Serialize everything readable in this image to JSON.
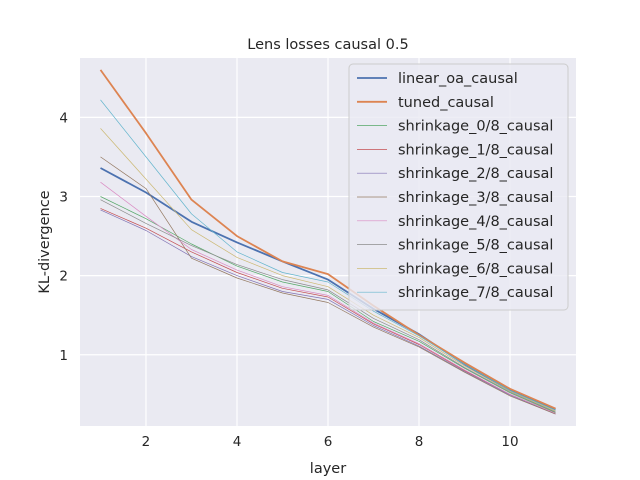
{
  "chart_data": {
    "type": "line",
    "title": "Lens losses causal 0.5",
    "xlabel": "layer",
    "ylabel": "KL-divergence",
    "xlim": [
      0.55,
      11.45
    ],
    "ylim": [
      0.1,
      4.75
    ],
    "xticks": [
      2,
      4,
      6,
      8,
      10
    ],
    "yticks": [
      1,
      2,
      3,
      4
    ],
    "grid": true,
    "legend_position": "top-right",
    "x": [
      1,
      2,
      3,
      4,
      5,
      6,
      7,
      8,
      9,
      10,
      11
    ],
    "series": [
      {
        "name": "linear_oa_causal",
        "color": "#4c72b0",
        "width": 1.8,
        "values": [
          3.36,
          3.05,
          2.68,
          2.42,
          2.18,
          1.95,
          1.58,
          1.26,
          0.88,
          0.55,
          0.31
        ]
      },
      {
        "name": "tuned_causal",
        "color": "#dd8452",
        "width": 1.8,
        "values": [
          4.6,
          3.8,
          2.96,
          2.5,
          2.18,
          2.02,
          1.62,
          1.25,
          0.9,
          0.57,
          0.32
        ]
      },
      {
        "name": "shrinkage_0/8_causal",
        "color": "#55a868",
        "width": 0.7,
        "values": [
          3.0,
          2.72,
          2.4,
          2.12,
          1.92,
          1.8,
          1.42,
          1.17,
          0.83,
          0.52,
          0.27
        ]
      },
      {
        "name": "shrinkage_1/8_causal",
        "color": "#c44e52",
        "width": 0.7,
        "values": [
          2.85,
          2.6,
          2.3,
          2.04,
          1.84,
          1.73,
          1.39,
          1.13,
          0.8,
          0.5,
          0.26
        ]
      },
      {
        "name": "shrinkage_2/8_causal",
        "color": "#8172b3",
        "width": 0.7,
        "values": [
          2.83,
          2.57,
          2.24,
          2.0,
          1.8,
          1.7,
          1.37,
          1.11,
          0.79,
          0.49,
          0.25
        ]
      },
      {
        "name": "shrinkage_3/8_causal",
        "color": "#937860",
        "width": 0.7,
        "values": [
          3.5,
          3.1,
          2.22,
          1.97,
          1.78,
          1.66,
          1.35,
          1.1,
          0.78,
          0.48,
          0.25
        ]
      },
      {
        "name": "shrinkage_4/8_causal",
        "color": "#da8bc3",
        "width": 0.7,
        "values": [
          3.18,
          2.75,
          2.33,
          2.07,
          1.86,
          1.75,
          1.4,
          1.14,
          0.81,
          0.5,
          0.26
        ]
      },
      {
        "name": "shrinkage_5/8_causal",
        "color": "#8c8c8c",
        "width": 0.7,
        "values": [
          2.96,
          2.66,
          2.38,
          2.14,
          1.95,
          1.82,
          1.46,
          1.19,
          0.84,
          0.53,
          0.28
        ]
      },
      {
        "name": "shrinkage_6/8_causal",
        "color": "#ccb974",
        "width": 0.7,
        "values": [
          3.86,
          3.22,
          2.58,
          2.23,
          2.0,
          1.86,
          1.5,
          1.22,
          0.86,
          0.54,
          0.29
        ]
      },
      {
        "name": "shrinkage_7/8_causal",
        "color": "#64b5cd",
        "width": 0.7,
        "values": [
          4.22,
          3.5,
          2.78,
          2.3,
          2.04,
          1.92,
          1.55,
          1.24,
          0.88,
          0.55,
          0.3
        ]
      }
    ]
  }
}
